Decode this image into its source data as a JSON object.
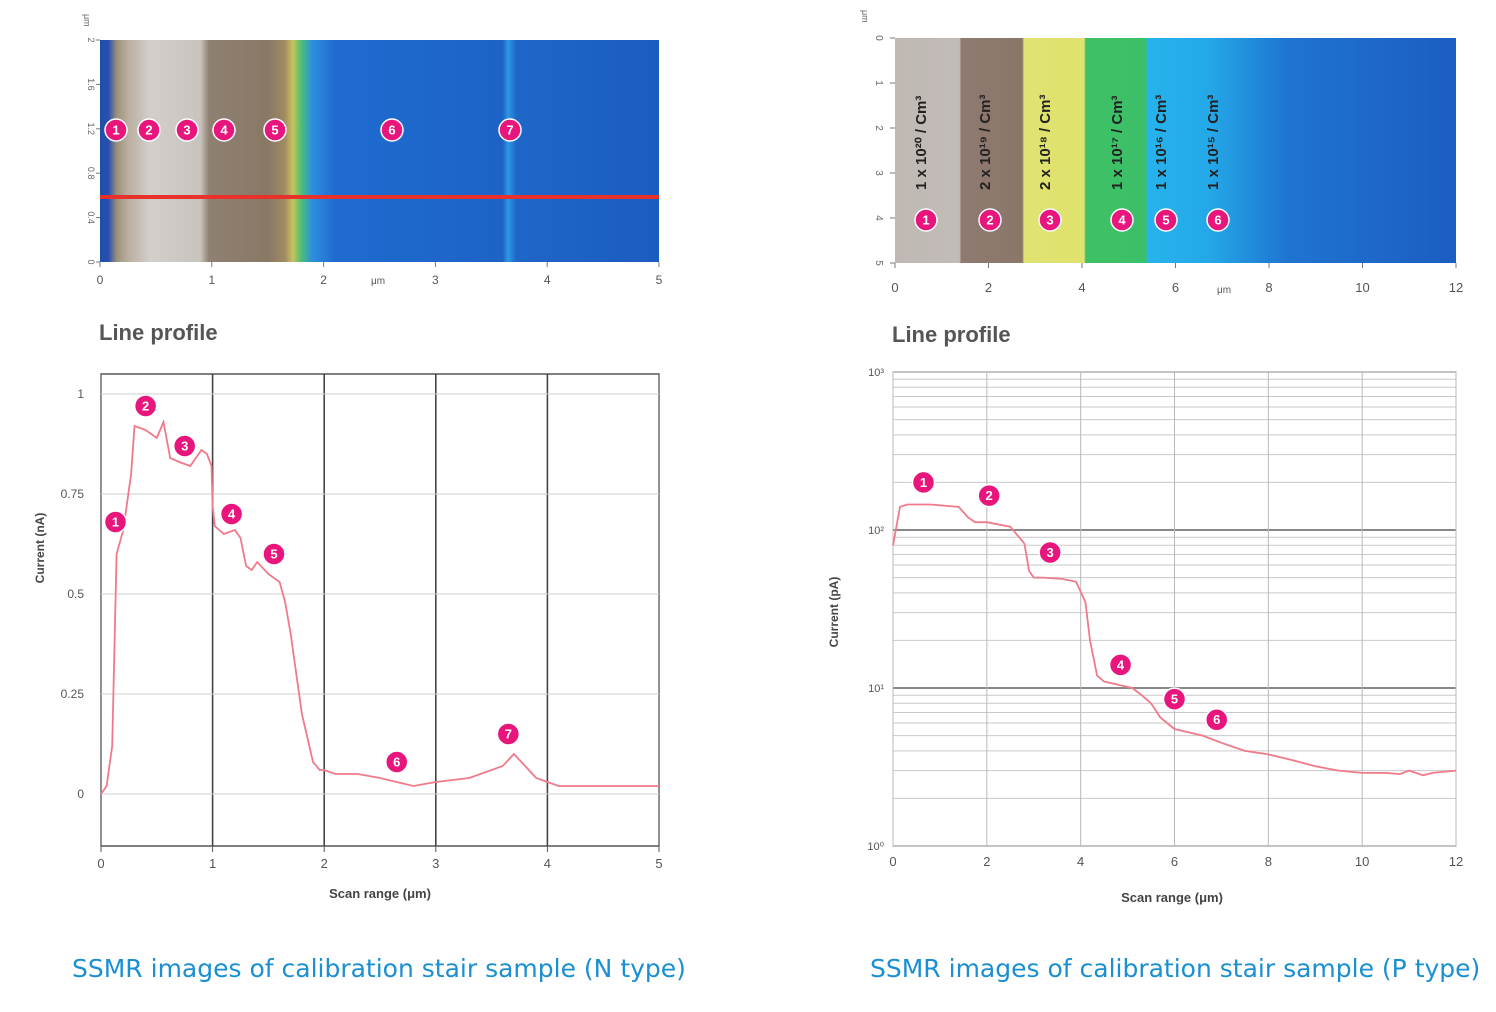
{
  "panels": {
    "n_type": {
      "map_y_unit": "μm",
      "map_y_ticks": [
        "0",
        "0.4",
        "0.8",
        "1.2",
        "1.6",
        "2"
      ],
      "map_x_unit": "μm",
      "map_x_ticks": [
        "0",
        "1",
        "2",
        "3",
        "4",
        "5"
      ],
      "map_markers": [
        "1",
        "2",
        "3",
        "4",
        "5",
        "6",
        "7"
      ],
      "profile_title": "Line profile",
      "caption": "SSMR images of calibration stair sample (N type)"
    },
    "p_type": {
      "map_y_unit": "μm",
      "map_y_ticks": [
        "0",
        "1",
        "2",
        "3",
        "4",
        "5"
      ],
      "map_x_unit": "μm",
      "map_x_ticks": [
        "0",
        "2",
        "4",
        "6",
        "8",
        "10",
        "12"
      ],
      "map_region_labels": [
        "1 x 10²⁰ / Cm³",
        "2 x 10¹⁹ / Cm³",
        "2 x 10¹⁸ / Cm³",
        "1 x 10¹⁷ / Cm³",
        "1 x 10¹⁶ / Cm³",
        "1 x 10¹⁵ / Cm³"
      ],
      "map_markers": [
        "1",
        "2",
        "3",
        "4",
        "5",
        "6"
      ],
      "profile_title": "Line profile",
      "caption": "SSMR images of calibration stair sample (P type)"
    }
  },
  "colors": {
    "curve": "#f07a8a",
    "marker": "#e8157c",
    "caption": "#1a8fd1",
    "scan_line": "#e8312a",
    "map_blue": "#1a62c8"
  },
  "chart_data": [
    {
      "type": "line",
      "xlabel": "Scan range (μm)",
      "ylabel": "Current (nA)",
      "xlim": [
        0,
        5
      ],
      "ylim": [
        -0.13,
        1.05
      ],
      "x_ticks": [
        "0",
        "1",
        "2",
        "3",
        "4",
        "5"
      ],
      "y_ticks": [
        "0",
        "0.25",
        "0.5",
        "0.75",
        "1"
      ],
      "grid": true,
      "series": [
        {
          "x": [
            0,
            0.05,
            0.1,
            0.14,
            0.2,
            0.27,
            0.3,
            0.4,
            0.5,
            0.56,
            0.62,
            0.7,
            0.8,
            0.9,
            0.95,
            0.99,
            1.0,
            1.02,
            1.1,
            1.2,
            1.25,
            1.3,
            1.35,
            1.4,
            1.5,
            1.6,
            1.65,
            1.7,
            1.8,
            1.9,
            1.96,
            2.0,
            2.1,
            2.3,
            2.5,
            2.65,
            2.8,
            3.0,
            3.3,
            3.6,
            3.7,
            3.8,
            3.9,
            4.1,
            4.5,
            5.0
          ],
          "y": [
            0.0,
            0.02,
            0.12,
            0.6,
            0.66,
            0.8,
            0.92,
            0.91,
            0.89,
            0.93,
            0.84,
            0.83,
            0.82,
            0.86,
            0.85,
            0.82,
            0.72,
            0.67,
            0.65,
            0.66,
            0.64,
            0.57,
            0.56,
            0.58,
            0.55,
            0.53,
            0.48,
            0.4,
            0.2,
            0.08,
            0.06,
            0.06,
            0.05,
            0.05,
            0.04,
            0.03,
            0.02,
            0.03,
            0.04,
            0.07,
            0.1,
            0.07,
            0.04,
            0.02,
            0.02,
            0.02
          ]
        }
      ],
      "annotations": [
        {
          "label": "1",
          "x": 0.13,
          "y": 0.68
        },
        {
          "label": "2",
          "x": 0.4,
          "y": 0.97
        },
        {
          "label": "3",
          "x": 0.75,
          "y": 0.87
        },
        {
          "label": "4",
          "x": 1.17,
          "y": 0.7
        },
        {
          "label": "5",
          "x": 1.55,
          "y": 0.6
        },
        {
          "label": "6",
          "x": 2.65,
          "y": 0.08
        },
        {
          "label": "7",
          "x": 3.65,
          "y": 0.15
        }
      ]
    },
    {
      "type": "line",
      "xlabel": "Scan range (μm)",
      "ylabel": "Current (pA)",
      "xlim": [
        0,
        12
      ],
      "ylim": [
        1,
        1000
      ],
      "y_scale": "log",
      "x_ticks": [
        "0",
        "2",
        "4",
        "6",
        "8",
        "10",
        "12"
      ],
      "y_ticks": [
        "10⁰",
        "10¹",
        "10²",
        "10³"
      ],
      "grid": true,
      "series": [
        {
          "x": [
            0,
            0.15,
            0.3,
            0.8,
            1.4,
            1.6,
            1.75,
            2.0,
            2.5,
            2.8,
            2.9,
            3.0,
            3.2,
            3.6,
            3.9,
            4.1,
            4.2,
            4.35,
            4.5,
            4.8,
            5.1,
            5.3,
            5.5,
            5.7,
            6.0,
            6.6,
            7.0,
            7.5,
            8.0,
            8.5,
            9.0,
            9.5,
            10.0,
            10.5,
            10.8,
            11.0,
            11.3,
            11.5,
            12.0
          ],
          "y": [
            80,
            140,
            145,
            145,
            140,
            120,
            112,
            112,
            105,
            82,
            55,
            50,
            50,
            49,
            47,
            35,
            20,
            12,
            11,
            10.5,
            10,
            9,
            8,
            6.5,
            5.5,
            5,
            4.5,
            4,
            3.8,
            3.5,
            3.2,
            3.0,
            2.9,
            2.9,
            2.85,
            3.0,
            2.8,
            2.9,
            3.0
          ]
        }
      ],
      "annotations": [
        {
          "label": "1",
          "x": 0.65,
          "y": 200
        },
        {
          "label": "2",
          "x": 2.05,
          "y": 165
        },
        {
          "label": "3",
          "x": 3.35,
          "y": 72
        },
        {
          "label": "4",
          "x": 4.85,
          "y": 14
        },
        {
          "label": "5",
          "x": 6.0,
          "y": 8.5
        },
        {
          "label": "6",
          "x": 6.9,
          "y": 6.3
        }
      ]
    }
  ]
}
